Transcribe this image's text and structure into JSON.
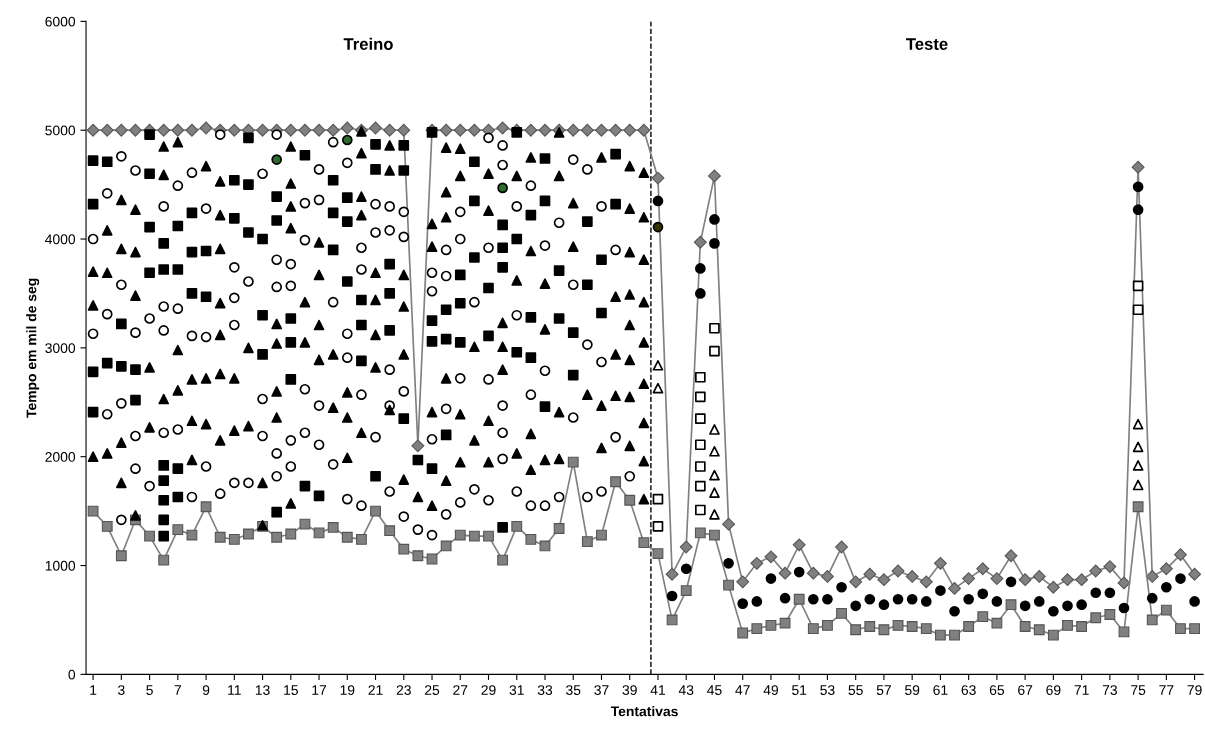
{
  "chart_data": {
    "type": "scatter",
    "xlabel": "Tentativas",
    "ylabel": "Tempo em mil de seg",
    "xlim": [
      0.5,
      79.6
    ],
    "ylim": [
      0,
      6000
    ],
    "xticks": [
      1,
      3,
      5,
      7,
      9,
      11,
      13,
      15,
      17,
      19,
      21,
      23,
      25,
      27,
      29,
      31,
      33,
      35,
      37,
      39,
      41,
      43,
      45,
      47,
      49,
      51,
      53,
      55,
      57,
      59,
      61,
      63,
      65,
      67,
      69,
      71,
      73,
      75,
      77,
      79
    ],
    "yticks": [
      0,
      1000,
      2000,
      3000,
      4000,
      5000,
      6000
    ],
    "ref_lines": [
      {
        "axis": "x",
        "value": 40.5,
        "color": "#000000",
        "line_style": "dashed"
      }
    ],
    "annotations": [
      "Treino",
      "Teste"
    ],
    "series": [
      {
        "type": "line",
        "color": "#808080",
        "marker": "diamond",
        "line_style": "solid",
        "x": [
          1,
          2,
          3,
          4,
          5,
          6,
          7,
          8,
          9,
          10,
          11,
          12,
          13,
          14,
          15,
          16,
          17,
          18,
          19,
          20,
          21,
          22,
          23,
          24,
          25,
          26,
          27,
          28,
          29,
          30,
          31,
          32,
          33,
          34,
          35,
          36,
          37,
          38,
          39,
          40,
          41,
          42,
          43,
          44,
          45,
          46,
          47,
          48,
          49,
          50,
          51,
          52,
          53,
          54,
          55,
          56,
          57,
          58,
          59,
          60,
          61,
          62,
          63,
          64,
          65,
          66,
          67,
          68,
          69,
          70,
          71,
          72,
          73,
          74,
          75,
          76,
          77,
          78,
          79
        ],
        "values": [
          5000,
          5000,
          5000,
          5000,
          5000,
          5000,
          5000,
          5000,
          5020,
          5000,
          5000,
          5000,
          5000,
          5000,
          5000,
          5000,
          5000,
          5000,
          5020,
          5000,
          5020,
          5000,
          5000,
          2100,
          5000,
          5000,
          5000,
          5000,
          5000,
          5020,
          5000,
          5000,
          5000,
          5000,
          5000,
          5000,
          5000,
          5000,
          5000,
          5000,
          4560,
          920,
          1170,
          3970,
          4580,
          1380,
          850,
          1020,
          1080,
          930,
          1190,
          930,
          900,
          1170,
          850,
          920,
          870,
          950,
          900,
          850,
          1020,
          790,
          880,
          970,
          880,
          1090,
          870,
          900,
          800,
          870,
          870,
          950,
          990,
          840,
          4660,
          900,
          970,
          1100,
          920
        ]
      },
      {
        "type": "line",
        "color": "#808080",
        "marker": "square",
        "line_style": "solid",
        "x": [
          1,
          2,
          3,
          4,
          5,
          6,
          7,
          8,
          9,
          10,
          11,
          12,
          13,
          14,
          15,
          16,
          17,
          18,
          19,
          20,
          21,
          22,
          23,
          24,
          25,
          26,
          27,
          28,
          29,
          30,
          31,
          32,
          33,
          34,
          35,
          36,
          37,
          38,
          39,
          40,
          41,
          42,
          43,
          44,
          45,
          46,
          47,
          48,
          49,
          50,
          51,
          52,
          53,
          54,
          55,
          56,
          57,
          58,
          59,
          60,
          61,
          62,
          63,
          64,
          65,
          66,
          67,
          68,
          69,
          70,
          71,
          72,
          73,
          74,
          75,
          76,
          77,
          78,
          79
        ],
        "values": [
          1500,
          1360,
          1090,
          1420,
          1270,
          1050,
          1330,
          1280,
          1540,
          1260,
          1240,
          1290,
          1360,
          1260,
          1290,
          1380,
          1300,
          1350,
          1260,
          1240,
          1500,
          1320,
          1150,
          1090,
          1060,
          1180,
          1280,
          1270,
          1270,
          1050,
          1360,
          1240,
          1180,
          1340,
          1950,
          1220,
          1280,
          1770,
          1600,
          1210,
          1110,
          500,
          770,
          1300,
          1280,
          820,
          380,
          420,
          450,
          470,
          690,
          420,
          450,
          560,
          410,
          440,
          410,
          450,
          440,
          420,
          360,
          360,
          440,
          530,
          470,
          640,
          440,
          410,
          360,
          450,
          440,
          520,
          550,
          390,
          1540,
          500,
          590,
          420,
          420
        ]
      },
      {
        "color": "#000000",
        "marker": "square",
        "x": [
          1,
          1,
          1,
          1,
          2,
          2,
          3,
          3,
          4,
          4,
          5,
          5,
          5,
          5,
          6,
          6,
          6,
          6,
          6,
          6,
          6,
          7,
          7,
          7,
          7,
          8,
          8,
          8,
          9,
          9,
          11,
          11,
          12,
          12,
          12,
          13,
          13,
          13,
          14,
          14,
          14,
          15,
          15,
          15,
          16,
          16,
          17,
          18,
          18,
          18,
          19,
          19,
          19,
          20,
          20,
          20,
          21,
          21,
          21,
          22,
          22,
          22,
          23,
          23,
          23,
          24,
          25,
          25,
          25,
          25,
          26,
          26,
          26,
          27,
          27,
          27,
          28,
          28,
          28,
          29,
          29,
          30,
          30,
          30,
          30,
          31,
          31,
          31,
          32,
          32,
          32,
          33,
          33,
          33,
          34,
          34,
          35,
          35,
          36,
          36,
          37,
          37,
          38,
          38
        ],
        "values": [
          4720,
          4320,
          2780,
          2410,
          4710,
          2860,
          3220,
          2830,
          2800,
          2520,
          4960,
          4600,
          4110,
          3690,
          3960,
          3720,
          1920,
          1780,
          1600,
          1420,
          1270,
          4120,
          3720,
          1890,
          1630,
          4240,
          3880,
          3500,
          3890,
          3470,
          4540,
          4190,
          4930,
          4500,
          4060,
          4000,
          3300,
          2940,
          4390,
          4170,
          1490,
          3270,
          3050,
          2710,
          4770,
          1730,
          1640,
          4540,
          4240,
          3900,
          4380,
          4160,
          3610,
          3440,
          3210,
          2880,
          4870,
          4640,
          1820,
          3770,
          3500,
          3160,
          4860,
          4630,
          2350,
          1970,
          4980,
          3250,
          3060,
          1890,
          3350,
          3080,
          2200,
          3670,
          3410,
          3050,
          4710,
          4350,
          3830,
          3550,
          3110,
          4130,
          3920,
          3740,
          1350,
          4980,
          4000,
          2960,
          4220,
          3280,
          2910,
          4740,
          4350,
          2460,
          3710,
          3270,
          3140,
          2750,
          4160,
          3580,
          3810,
          3320,
          4780,
          4320
        ]
      },
      {
        "color": "#ffffff",
        "marker": "circle",
        "x": [
          1,
          1,
          2,
          2,
          2,
          3,
          3,
          3,
          3,
          4,
          4,
          4,
          4,
          5,
          5,
          6,
          6,
          6,
          6,
          7,
          7,
          7,
          8,
          8,
          8,
          9,
          9,
          9,
          10,
          10,
          11,
          11,
          11,
          11,
          12,
          12,
          13,
          13,
          13,
          14,
          14,
          14,
          14,
          14,
          15,
          15,
          15,
          15,
          16,
          16,
          16,
          16,
          17,
          17,
          17,
          17,
          18,
          18,
          18,
          19,
          19,
          19,
          19,
          20,
          20,
          20,
          20,
          21,
          21,
          21,
          22,
          22,
          22,
          22,
          22,
          23,
          23,
          23,
          23,
          24,
          25,
          25,
          25,
          25,
          26,
          26,
          26,
          26,
          27,
          27,
          27,
          27,
          28,
          28,
          29,
          29,
          29,
          29,
          30,
          30,
          30,
          30,
          30,
          31,
          31,
          31,
          32,
          32,
          32,
          33,
          33,
          33,
          34,
          34,
          35,
          35,
          35,
          36,
          36,
          36,
          37,
          37,
          37,
          38,
          38,
          39
        ],
        "values": [
          4000,
          3130,
          4420,
          3310,
          2390,
          4760,
          3580,
          2490,
          1420,
          4630,
          3140,
          2190,
          1890,
          3270,
          1730,
          4300,
          3380,
          3160,
          2220,
          4490,
          3360,
          2250,
          4610,
          3110,
          1630,
          4280,
          3100,
          1910,
          4960,
          1660,
          3740,
          3460,
          3210,
          1760,
          3610,
          1760,
          4600,
          2530,
          2190,
          4960,
          3810,
          3560,
          2030,
          1820,
          3770,
          3570,
          2150,
          1910,
          4330,
          3990,
          2620,
          2220,
          4640,
          4360,
          2470,
          2110,
          4890,
          3420,
          1930,
          4700,
          3130,
          2910,
          1610,
          3920,
          3720,
          2570,
          1550,
          4320,
          4060,
          2180,
          4300,
          4080,
          2800,
          2470,
          1680,
          4250,
          4020,
          2600,
          1450,
          1330,
          3690,
          3520,
          2160,
          1280,
          3900,
          3660,
          2440,
          1470,
          4250,
          4000,
          2720,
          1580,
          3420,
          1700,
          4930,
          3920,
          2710,
          1600,
          4860,
          4680,
          2470,
          2220,
          1980,
          4300,
          3300,
          1680,
          4490,
          2570,
          1550,
          3940,
          2790,
          1550,
          4150,
          1630,
          4730,
          3580,
          2360,
          4640,
          3030,
          1630,
          4300,
          2870,
          1680,
          3900,
          2180,
          1820
        ]
      },
      {
        "color": "#2e6b2e",
        "marker": "circle",
        "x": [
          14,
          19,
          30
        ],
        "values": [
          4730,
          4910,
          4470
        ]
      },
      {
        "color": "#000000",
        "marker": "triangle",
        "x": [
          1,
          1,
          1,
          2,
          2,
          2,
          3,
          3,
          3,
          3,
          4,
          4,
          4,
          4,
          5,
          5,
          6,
          6,
          6,
          7,
          7,
          7,
          8,
          8,
          8,
          9,
          9,
          9,
          10,
          10,
          10,
          10,
          10,
          10,
          10,
          11,
          11,
          12,
          12,
          13,
          13,
          14,
          14,
          14,
          14,
          15,
          15,
          15,
          15,
          15,
          16,
          16,
          17,
          17,
          17,
          17,
          18,
          18,
          19,
          19,
          19,
          20,
          20,
          20,
          20,
          20,
          21,
          21,
          21,
          21,
          22,
          22,
          22,
          23,
          23,
          23,
          23,
          24,
          25,
          25,
          25,
          25,
          26,
          26,
          26,
          26,
          26,
          27,
          27,
          27,
          27,
          28,
          28,
          29,
          29,
          29,
          29,
          30,
          30,
          30,
          31,
          31,
          31,
          32,
          32,
          32,
          32,
          33,
          33,
          33,
          34,
          34,
          34,
          34,
          35,
          35,
          36,
          37,
          37,
          37,
          38,
          38,
          38,
          39,
          39,
          39,
          39,
          39,
          39,
          39,
          39,
          40,
          40,
          40,
          40,
          40,
          40,
          40,
          40,
          40
        ],
        "values": [
          3700,
          3390,
          2000,
          4080,
          3690,
          2030,
          4360,
          3910,
          2130,
          1760,
          4270,
          3880,
          3480,
          1460,
          2820,
          2270,
          4850,
          4590,
          2530,
          4890,
          2980,
          2610,
          2710,
          2330,
          1970,
          4670,
          2720,
          2300,
          4530,
          4220,
          3910,
          3410,
          3120,
          2760,
          2150,
          2720,
          2240,
          3000,
          2280,
          1760,
          1370,
          3220,
          3040,
          2600,
          2360,
          4850,
          4510,
          4300,
          4100,
          1570,
          3420,
          3050,
          3970,
          3670,
          3210,
          2890,
          2940,
          2450,
          2590,
          2360,
          1990,
          4990,
          4790,
          4390,
          4220,
          2220,
          3690,
          3440,
          3120,
          2820,
          4860,
          4630,
          2430,
          3670,
          3380,
          2940,
          1790,
          1630,
          4140,
          3930,
          2410,
          1550,
          4840,
          4430,
          4200,
          2720,
          1780,
          4830,
          4580,
          2390,
          1950,
          3010,
          2150,
          4600,
          4260,
          2330,
          1950,
          3230,
          3010,
          2800,
          4580,
          3620,
          2030,
          4750,
          3890,
          2210,
          1880,
          3590,
          3170,
          1970,
          4980,
          4580,
          2410,
          1980,
          4330,
          3930,
          2570,
          4750,
          2470,
          2080,
          3470,
          2940,
          2560,
          4670,
          4280,
          3880,
          3490,
          3210,
          2890,
          2550,
          2100,
          4610,
          4200,
          3810,
          3420,
          3050,
          2670,
          2310,
          1960,
          1610
        ]
      },
      {
        "color": "#000000",
        "marker": "circle",
        "x": [
          41,
          42,
          43,
          44,
          44,
          45,
          45,
          46,
          47,
          48,
          49,
          50,
          51,
          52,
          53,
          54,
          55,
          56,
          57,
          58,
          59,
          60,
          61,
          62,
          63,
          64,
          65,
          66,
          67,
          68,
          69,
          70,
          71,
          72,
          73,
          74,
          75,
          75,
          76,
          77,
          78,
          79
        ],
        "values": [
          4350,
          720,
          970,
          3730,
          3500,
          4180,
          3960,
          1020,
          650,
          670,
          880,
          700,
          940,
          690,
          690,
          800,
          630,
          690,
          640,
          690,
          690,
          670,
          770,
          580,
          690,
          740,
          670,
          850,
          630,
          670,
          580,
          630,
          640,
          750,
          750,
          610,
          4480,
          4270,
          700,
          800,
          880,
          670
        ]
      },
      {
        "color": "#333300",
        "marker": "circle",
        "x": [
          41
        ],
        "values": [
          4110
        ]
      },
      {
        "color": "#ffffff",
        "marker": "square",
        "x": [
          41,
          41,
          44,
          44,
          44,
          44,
          44,
          44,
          44,
          45,
          45,
          75,
          75
        ],
        "values": [
          1610,
          1360,
          2730,
          2550,
          2350,
          2110,
          1910,
          1730,
          1510,
          3180,
          2970,
          3570,
          3350
        ]
      },
      {
        "color": "#ffffff",
        "marker": "triangle",
        "x": [
          41,
          41,
          45,
          45,
          45,
          45,
          45,
          75,
          75,
          75,
          75
        ],
        "values": [
          2840,
          2630,
          2250,
          2050,
          1830,
          1670,
          1470,
          2300,
          2090,
          1920,
          1740
        ]
      }
    ]
  }
}
